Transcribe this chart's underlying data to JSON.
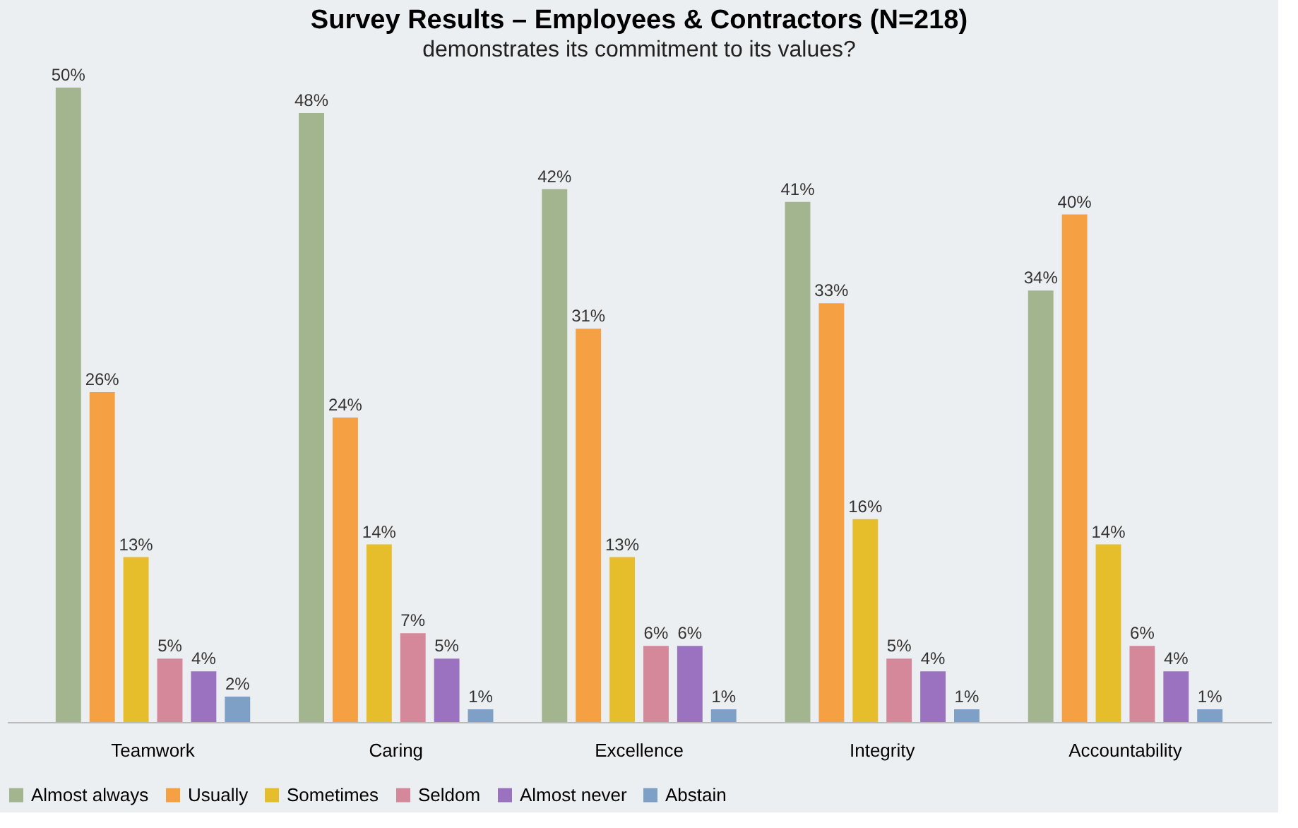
{
  "chart_data": {
    "type": "bar",
    "title": "Survey Results – Employees & Contractors (N=218)",
    "subtitle": "demonstrates its commitment to its values?",
    "categories": [
      "Teamwork",
      "Caring",
      "Excellence",
      "Integrity",
      "Accountability"
    ],
    "series": [
      {
        "name": "Almost always",
        "color": "#a3b58f",
        "values": [
          50,
          48,
          42,
          41,
          34
        ],
        "value_labels": [
          "50%",
          "48%",
          "42%",
          "41%",
          "34%"
        ]
      },
      {
        "name": "Usually",
        "color": "#f5a042",
        "values": [
          26,
          24,
          31,
          33,
          40
        ],
        "value_labels": [
          "26%",
          "24%",
          "31%",
          "33%",
          "40%"
        ]
      },
      {
        "name": "Sometimes",
        "color": "#e6bd2a",
        "values": [
          13,
          14,
          13,
          16,
          14
        ],
        "value_labels": [
          "13%",
          "14%",
          "13%",
          "16%",
          "14%"
        ]
      },
      {
        "name": "Seldom",
        "color": "#d4889a",
        "values": [
          5,
          7,
          6,
          5,
          6
        ],
        "value_labels": [
          "5%",
          "7%",
          "6%",
          "5%",
          "6%"
        ]
      },
      {
        "name": "Almost never",
        "color": "#9b72c0",
        "values": [
          4,
          5,
          6,
          4,
          4
        ],
        "value_labels": [
          "4%",
          "5%",
          "6%",
          "4%",
          "4%"
        ]
      },
      {
        "name": "Abstain",
        "color": "#7e9fc6",
        "values": [
          2,
          1,
          1,
          1,
          1
        ],
        "value_labels": [
          "2%",
          "1%",
          "1%",
          "1%",
          "1%"
        ]
      }
    ],
    "legend": "bottom",
    "grid": false
  }
}
